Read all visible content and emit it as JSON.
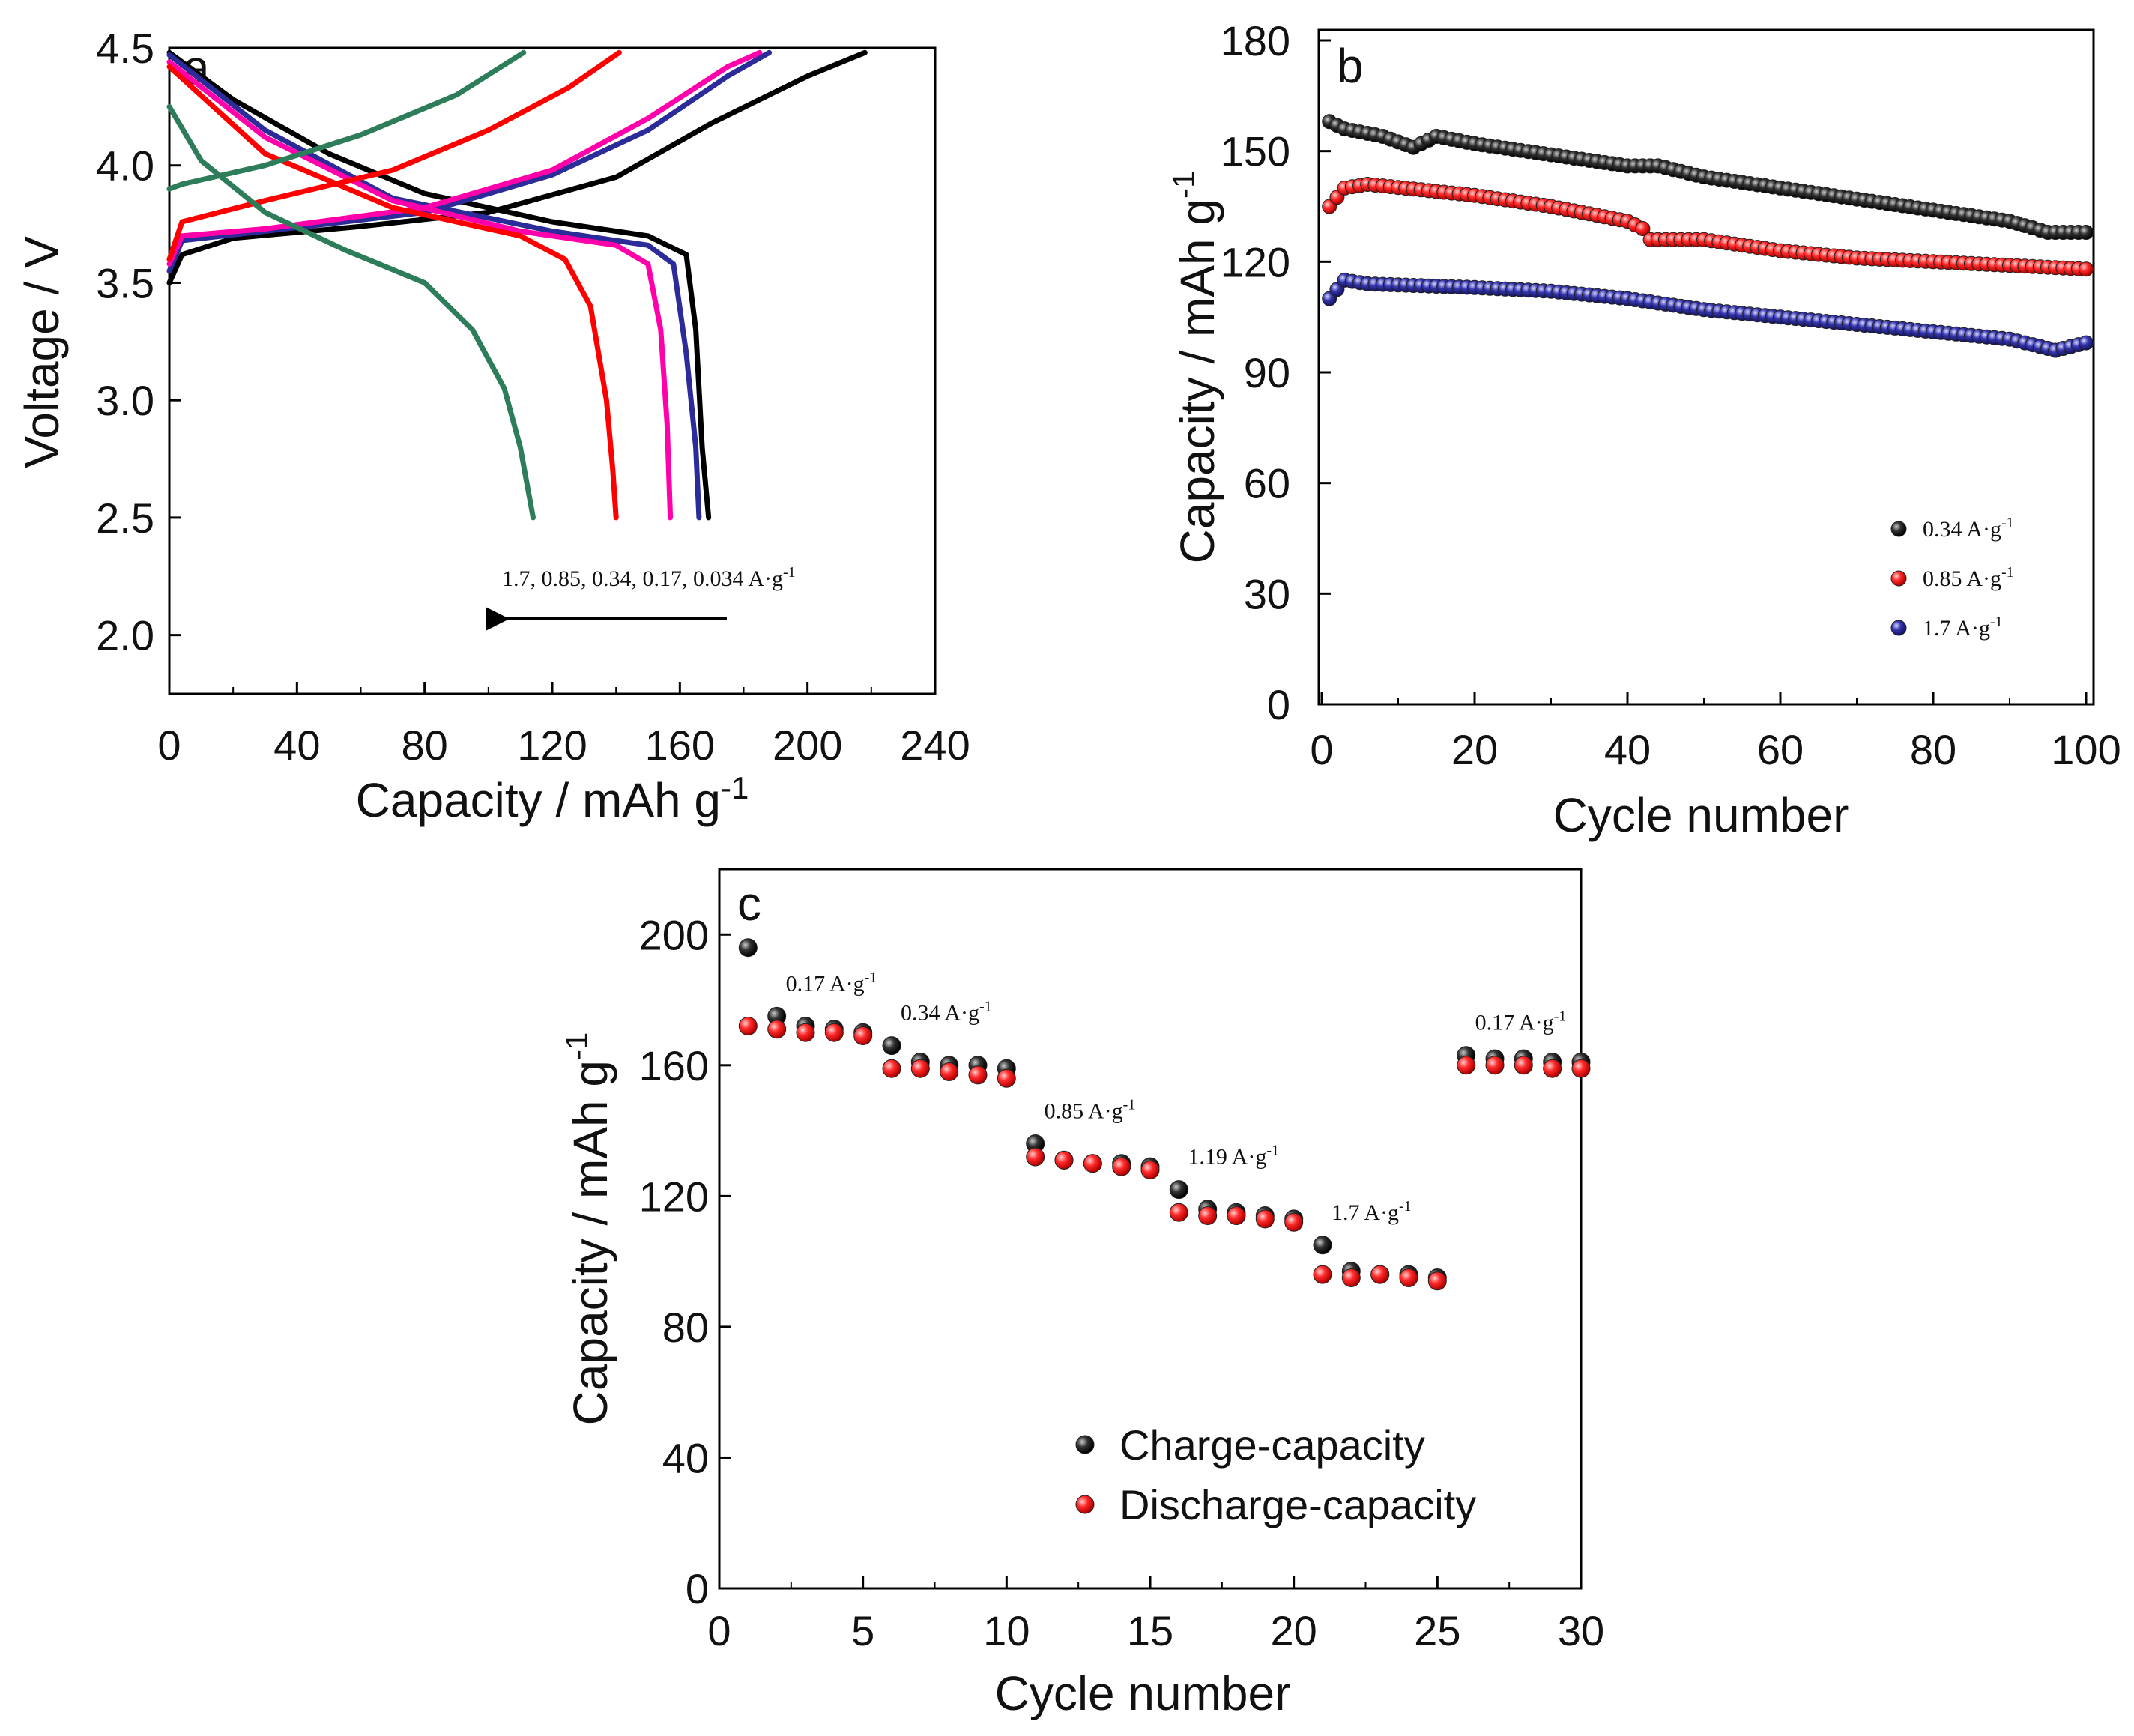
{
  "chart_data": [
    {
      "panel_label": "a",
      "type": "line",
      "xlabel": "Capacity / mAh g",
      "xlabel_sup": "-1",
      "ylabel": "Voltage / V",
      "xlim": [
        0,
        240
      ],
      "ylim": [
        1.75,
        4.5
      ],
      "xticks": [
        "0",
        "40",
        "80",
        "120",
        "160",
        "200",
        "240"
      ],
      "yticks": [
        "2.0",
        "2.5",
        "3.0",
        "3.5",
        "4.0",
        "4.5"
      ],
      "annotation": "1.7, 0.85, 0.34, 0.17, 0.034 A·g",
      "annotation_sup": "-1",
      "series": [
        {
          "rate": "0.034 A·g-1",
          "color": "#000000",
          "charge": [
            [
              0,
              3.5
            ],
            [
              4,
              3.62
            ],
            [
              20,
              3.69
            ],
            [
              60,
              3.74
            ],
            [
              100,
              3.8
            ],
            [
              140,
              3.95
            ],
            [
              170,
              4.18
            ],
            [
              200,
              4.38
            ],
            [
              218,
              4.48
            ]
          ],
          "discharge": [
            [
              0,
              4.48
            ],
            [
              20,
              4.28
            ],
            [
              50,
              4.05
            ],
            [
              80,
              3.88
            ],
            [
              120,
              3.76
            ],
            [
              150,
              3.7
            ],
            [
              162,
              3.62
            ],
            [
              165,
              3.3
            ],
            [
              167,
              2.8
            ],
            [
              169,
              2.5
            ]
          ]
        },
        {
          "rate": "0.17 A·g-1",
          "color": "#2b2b9a",
          "charge": [
            [
              0,
              3.55
            ],
            [
              4,
              3.68
            ],
            [
              30,
              3.72
            ],
            [
              80,
              3.8
            ],
            [
              120,
              3.96
            ],
            [
              150,
              4.15
            ],
            [
              175,
              4.38
            ],
            [
              188,
              4.48
            ]
          ],
          "discharge": [
            [
              0,
              4.47
            ],
            [
              30,
              4.15
            ],
            [
              70,
              3.86
            ],
            [
              120,
              3.72
            ],
            [
              150,
              3.66
            ],
            [
              158,
              3.58
            ],
            [
              162,
              3.2
            ],
            [
              165,
              2.8
            ],
            [
              166,
              2.5
            ]
          ]
        },
        {
          "rate": "0.34 A·g-1",
          "color": "#ff00aa",
          "charge": [
            [
              0,
              3.58
            ],
            [
              4,
              3.7
            ],
            [
              30,
              3.73
            ],
            [
              80,
              3.82
            ],
            [
              120,
              3.98
            ],
            [
              150,
              4.2
            ],
            [
              175,
              4.42
            ],
            [
              185,
              4.48
            ]
          ],
          "discharge": [
            [
              0,
              4.44
            ],
            [
              30,
              4.12
            ],
            [
              70,
              3.85
            ],
            [
              110,
              3.72
            ],
            [
              140,
              3.66
            ],
            [
              150,
              3.58
            ],
            [
              154,
              3.3
            ],
            [
              156,
              2.9
            ],
            [
              157,
              2.5
            ]
          ]
        },
        {
          "rate": "0.85 A·g-1",
          "color": "#ff0000",
          "charge": [
            [
              0,
              3.6
            ],
            [
              4,
              3.76
            ],
            [
              30,
              3.85
            ],
            [
              70,
              3.98
            ],
            [
              100,
              4.15
            ],
            [
              125,
              4.33
            ],
            [
              141,
              4.48
            ]
          ],
          "discharge": [
            [
              0,
              4.42
            ],
            [
              30,
              4.05
            ],
            [
              70,
              3.82
            ],
            [
              110,
              3.7
            ],
            [
              124,
              3.6
            ],
            [
              132,
              3.4
            ],
            [
              137,
              3.0
            ],
            [
              139,
              2.7
            ],
            [
              140,
              2.5
            ]
          ]
        },
        {
          "rate": "1.7 A·g-1",
          "color": "#2e7d5a",
          "charge": [
            [
              0,
              3.9
            ],
            [
              4,
              3.92
            ],
            [
              30,
              4.0
            ],
            [
              60,
              4.13
            ],
            [
              90,
              4.3
            ],
            [
              111,
              4.48
            ]
          ],
          "discharge": [
            [
              0,
              4.25
            ],
            [
              10,
              4.02
            ],
            [
              30,
              3.8
            ],
            [
              55,
              3.64
            ],
            [
              80,
              3.5
            ],
            [
              95,
              3.3
            ],
            [
              105,
              3.05
            ],
            [
              110,
              2.8
            ],
            [
              114,
              2.5
            ]
          ]
        }
      ]
    },
    {
      "panel_label": "b",
      "type": "scatter",
      "xlabel": "Cycle number",
      "ylabel": "Capacity / mAh g",
      "ylabel_sup": "-1",
      "xlim": [
        0,
        100
      ],
      "ylim": [
        0,
        180
      ],
      "xticks": [
        "0",
        "20",
        "40",
        "60",
        "80",
        "100"
      ],
      "yticks": [
        "0",
        "30",
        "60",
        "90",
        "120",
        "150",
        "180"
      ],
      "series": [
        {
          "name": "0.34 A·g",
          "sup": "-1",
          "color": "#000000",
          "keypoints": [
            [
              1,
              158
            ],
            [
              3,
              156
            ],
            [
              8,
              154
            ],
            [
              12,
              151
            ],
            [
              15,
              154
            ],
            [
              20,
              152
            ],
            [
              30,
              149
            ],
            [
              40,
              146
            ],
            [
              44,
              146
            ],
            [
              50,
              143
            ],
            [
              60,
              140
            ],
            [
              70,
              137
            ],
            [
              80,
              134
            ],
            [
              90,
              131
            ],
            [
              95,
              128
            ],
            [
              100,
              128
            ]
          ]
        },
        {
          "name": "0.85 A·g",
          "sup": "-1",
          "color": "#ff0000",
          "keypoints": [
            [
              1,
              135
            ],
            [
              3,
              140
            ],
            [
              6,
              141
            ],
            [
              20,
              138
            ],
            [
              30,
              135
            ],
            [
              40,
              131
            ],
            [
              42,
              129
            ],
            [
              43,
              126
            ],
            [
              50,
              126
            ],
            [
              60,
              123
            ],
            [
              70,
              121
            ],
            [
              80,
              120
            ],
            [
              90,
              119
            ],
            [
              100,
              118
            ]
          ]
        },
        {
          "name": "1.7 A·g",
          "sup": "-1",
          "color": "#2b2b9a",
          "keypoints": [
            [
              1,
              110
            ],
            [
              3,
              115
            ],
            [
              6,
              114
            ],
            [
              20,
              113
            ],
            [
              30,
              112
            ],
            [
              40,
              110
            ],
            [
              50,
              107
            ],
            [
              60,
              105
            ],
            [
              70,
              103
            ],
            [
              80,
              101
            ],
            [
              90,
              99
            ],
            [
              96,
              96
            ],
            [
              100,
              98
            ]
          ]
        }
      ]
    },
    {
      "panel_label": "c",
      "type": "scatter",
      "xlabel": "Cycle number",
      "ylabel": "Capacity / mAh g",
      "ylabel_sup": "-1",
      "xlim": [
        0,
        30
      ],
      "ylim": [
        0,
        220
      ],
      "xticks": [
        "0",
        "5",
        "10",
        "15",
        "20",
        "25",
        "30"
      ],
      "yticks": [
        "0",
        "40",
        "80",
        "120",
        "160",
        "200"
      ],
      "series": [
        {
          "name": "Charge-capacity",
          "color": "#000000",
          "x": [
            1,
            2,
            3,
            4,
            5,
            6,
            7,
            8,
            9,
            10,
            11,
            12,
            13,
            14,
            15,
            16,
            17,
            18,
            19,
            20,
            21,
            22,
            23,
            24,
            25,
            26,
            27,
            28,
            29,
            30
          ],
          "values": [
            196,
            175,
            172,
            171,
            170,
            166,
            161,
            160,
            160,
            159,
            136,
            131,
            130,
            130,
            129,
            122,
            116,
            115,
            114,
            113,
            105,
            97,
            96,
            96,
            95,
            163,
            162,
            162,
            161,
            161
          ]
        },
        {
          "name": "Discharge-capacity",
          "color": "#ff0000",
          "x": [
            1,
            2,
            3,
            4,
            5,
            6,
            7,
            8,
            9,
            10,
            11,
            12,
            13,
            14,
            15,
            16,
            17,
            18,
            19,
            20,
            21,
            22,
            23,
            24,
            25,
            26,
            27,
            28,
            29,
            30
          ],
          "values": [
            172,
            171,
            170,
            170,
            169,
            159,
            159,
            158,
            157,
            156,
            132,
            131,
            130,
            129,
            128,
            115,
            114,
            114,
            113,
            112,
            96,
            95,
            96,
            95,
            94,
            160,
            160,
            160,
            159,
            159
          ]
        }
      ],
      "rate_labels": [
        {
          "text": "0.17 A·g",
          "sup": "-1"
        },
        {
          "text": "0.34 A·g",
          "sup": "-1"
        },
        {
          "text": "0.85 A·g",
          "sup": "-1"
        },
        {
          "text": "1.19 A·g",
          "sup": "-1"
        },
        {
          "text": "1.7 A·g",
          "sup": "-1"
        },
        {
          "text": "0.17 A·g",
          "sup": "-1"
        }
      ]
    }
  ]
}
